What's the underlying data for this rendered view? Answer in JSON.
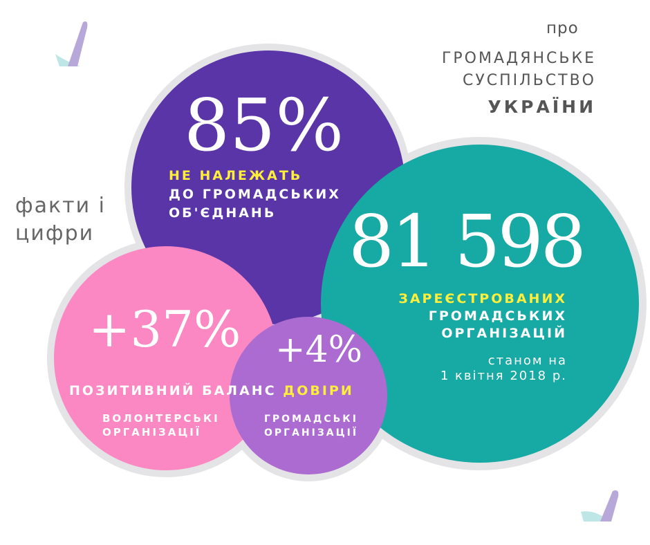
{
  "header": {
    "pro": "про",
    "line1": "ГРОМАДЯНСЬКЕ",
    "line2": "СУСПІЛЬСТВО",
    "line3": "УКРАЇНИ"
  },
  "facts_label": {
    "line1": "факти і",
    "line2": "цифри"
  },
  "stat_85": {
    "value": "85%",
    "highlight": "НЕ НАЛЕЖАТЬ",
    "line2": "ДО ГРОМАДСЬКИХ",
    "line3": "ОБ'ЄДНАНЬ"
  },
  "stat_81598": {
    "value": "81 598",
    "highlight": "ЗАРЕЄСТРОВАНИХ",
    "line2": "ГРОМАДСЬКИХ",
    "line3": "ОРГАНІЗАЦІЙ",
    "date1": "станом на",
    "date2": "1 квітня 2018 р."
  },
  "stat_37": {
    "value": "+37%",
    "balance_label": "ПОЗИТИВНИЙ БАЛАНС",
    "balance_highlight": "ДОВІРИ",
    "sub1": "ВОЛОНТЕРСЬКІ",
    "sub2": "ОРГАНІЗАЦІЇ"
  },
  "stat_4": {
    "value": "+4%",
    "sub1": "ГРОМАДСЬКІ",
    "sub2": "ОРГАНІЗАЦІЇ"
  },
  "colors": {
    "purple": "#5a35a8",
    "teal": "#17a9a3",
    "pink": "#fb88c2",
    "lilac": "#ab6bd1",
    "yellow": "#ffef3a",
    "ring": "#e4e4e6"
  }
}
